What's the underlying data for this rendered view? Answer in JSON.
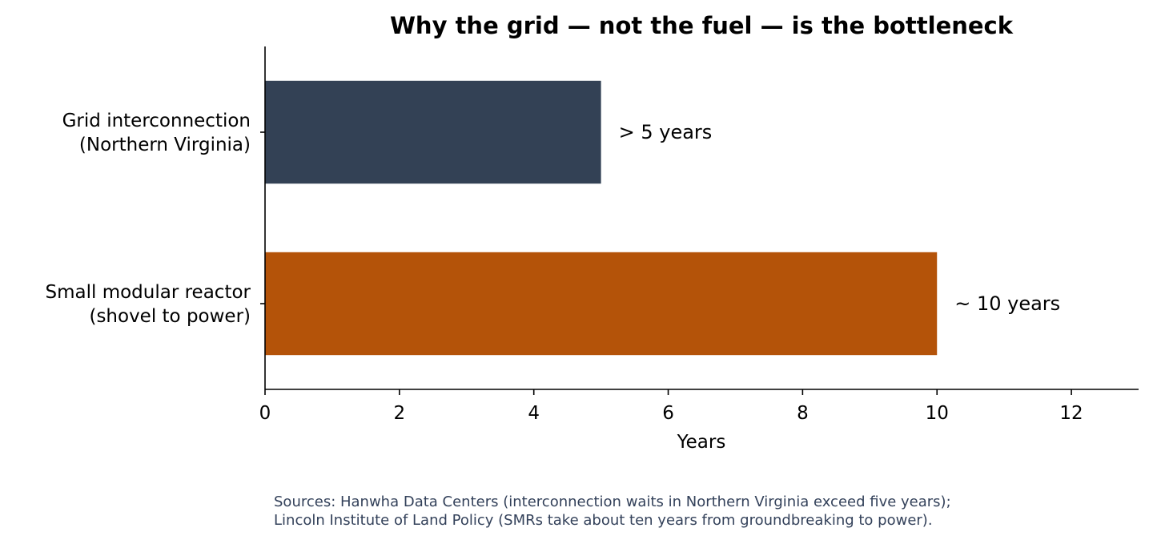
{
  "chart_data": {
    "type": "bar",
    "orientation": "horizontal",
    "title": "Why the grid — not the fuel — is the bottleneck",
    "xlabel": "Years",
    "ylabel": "",
    "xlim": [
      0,
      13
    ],
    "xticks": [
      0,
      2,
      4,
      6,
      8,
      10,
      12
    ],
    "grid": false,
    "categories": [
      [
        "Grid interconnection",
        "(Northern Virginia)"
      ],
      [
        "Small modular reactor",
        "(shovel to power)"
      ]
    ],
    "values": [
      5,
      10
    ],
    "value_labels": [
      "> 5 years",
      "~ 10 years"
    ],
    "colors": [
      "#334155",
      "#b45309"
    ],
    "source_lines": [
      "Sources: Hanwha Data Centers (interconnection waits in Northern Virginia exceed five years);",
      "Lincoln Institute of Land Policy (SMRs take about ten years from groundbreaking to power)."
    ]
  }
}
